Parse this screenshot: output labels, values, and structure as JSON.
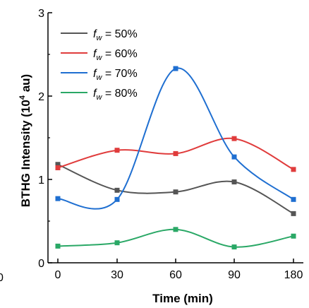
{
  "chart_data": {
    "type": "line",
    "categories": [
      "0",
      "30",
      "60",
      "90",
      "180"
    ],
    "xlabel": "Time (min)",
    "ylabel": "BTHG Intensity (10^4 au)",
    "ylabel_parts": {
      "main": "BTHG Intensity (10",
      "sup": "4",
      "unit": " au)"
    },
    "ylim": [
      0,
      3
    ],
    "yticks": [
      "0",
      "1",
      "2",
      "3"
    ],
    "stray_label": "0",
    "legend_position": "top-left",
    "series": [
      {
        "name": "f_w = 50%",
        "name_main": "f",
        "name_sub": "w",
        "name_rest": " = 50%",
        "color": "#555555",
        "values": [
          1.18,
          0.87,
          0.85,
          0.97,
          0.59
        ]
      },
      {
        "name": "f_w = 60%",
        "name_main": "f",
        "name_sub": "w",
        "name_rest": " = 60%",
        "color": "#e03c3c",
        "values": [
          1.14,
          1.35,
          1.31,
          1.49,
          1.12
        ]
      },
      {
        "name": "f_w = 70%",
        "name_main": "f",
        "name_sub": "w",
        "name_rest": " = 70%",
        "color": "#1f6fd1",
        "values": [
          0.77,
          0.76,
          2.33,
          1.27,
          0.76
        ]
      },
      {
        "name": "f_w = 80%",
        "name_main": "f",
        "name_sub": "w",
        "name_rest": " = 80%",
        "color": "#2aa866",
        "values": [
          0.2,
          0.24,
          0.4,
          0.19,
          0.32
        ]
      }
    ]
  }
}
